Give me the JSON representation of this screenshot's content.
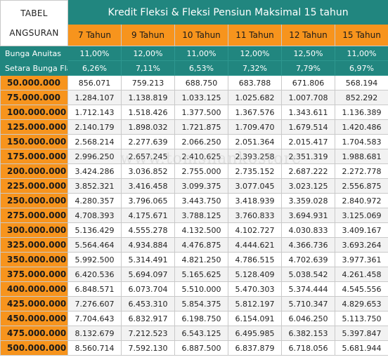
{
  "header": {
    "corner_line1": "TABEL",
    "corner_line2": "ANGSURAN",
    "title": "Kredit Fleksi & Fleksi Pensiun Maksimal 15 tahun",
    "tenors": [
      "7 Tahun",
      "9 Tahun",
      "10 Tahun",
      "11 Tahun",
      "12 Tahun",
      "15 Tahun"
    ]
  },
  "rates": [
    {
      "label": "Bunga Anuitas",
      "values": [
        "11,00%",
        "12,00%",
        "11,00%",
        "12,00%",
        "12,50%",
        "11,00%"
      ]
    },
    {
      "label": "Setara Bunga Flat",
      "values": [
        "6,26%",
        "7,11%",
        "6,53%",
        "7,32%",
        "7,79%",
        "6,97%"
      ]
    }
  ],
  "rows": [
    {
      "amount": "50.000.000",
      "values": [
        "856.071",
        "759.213",
        "688.750",
        "683.788",
        "671.806",
        "568.194"
      ]
    },
    {
      "amount": "75.000.000",
      "values": [
        "1.284.107",
        "1.138.819",
        "1.033.125",
        "1.025.682",
        "1.007.708",
        "852.292"
      ]
    },
    {
      "amount": "100.000.000",
      "values": [
        "1.712.143",
        "1.518.426",
        "1.377.500",
        "1.367.576",
        "1.343.611",
        "1.136.389"
      ]
    },
    {
      "amount": "125.000.000",
      "values": [
        "2.140.179",
        "1.898.032",
        "1.721.875",
        "1.709.470",
        "1.679.514",
        "1.420.486"
      ]
    },
    {
      "amount": "150.000.000",
      "values": [
        "2.568.214",
        "2.277.639",
        "2.066.250",
        "2.051.364",
        "2.015.417",
        "1.704.583"
      ]
    },
    {
      "amount": "175.000.000",
      "values": [
        "2.996.250",
        "2.657.245",
        "2.410.625",
        "2.393.258",
        "2.351.319",
        "1.988.681"
      ]
    },
    {
      "amount": "200.000.000",
      "values": [
        "3.424.286",
        "3.036.852",
        "2.755.000",
        "2.735.152",
        "2.687.222",
        "2.272.778"
      ]
    },
    {
      "amount": "225.000.000",
      "values": [
        "3.852.321",
        "3.416.458",
        "3.099.375",
        "3.077.045",
        "3.023.125",
        "2.556.875"
      ]
    },
    {
      "amount": "250.000.000",
      "values": [
        "4.280.357",
        "3.796.065",
        "3.443.750",
        "3.418.939",
        "3.359.028",
        "2.840.972"
      ]
    },
    {
      "amount": "275.000.000",
      "values": [
        "4.708.393",
        "4.175.671",
        "3.788.125",
        "3.760.833",
        "3.694.931",
        "3.125.069"
      ]
    },
    {
      "amount": "300.000.000",
      "values": [
        "5.136.429",
        "4.555.278",
        "4.132.500",
        "4.102.727",
        "4.030.833",
        "3.409.167"
      ]
    },
    {
      "amount": "325.000.000",
      "values": [
        "5.564.464",
        "4.934.884",
        "4.476.875",
        "4.444.621",
        "4.366.736",
        "3.693.264"
      ]
    },
    {
      "amount": "350.000.000",
      "values": [
        "5.992.500",
        "5.314.491",
        "4.821.250",
        "4.786.515",
        "4.702.639",
        "3.977.361"
      ]
    },
    {
      "amount": "375.000.000",
      "values": [
        "6.420.536",
        "5.694.097",
        "5.165.625",
        "5.128.409",
        "5.038.542",
        "4.261.458"
      ]
    },
    {
      "amount": "400.000.000",
      "values": [
        "6.848.571",
        "6.073.704",
        "5.510.000",
        "5.470.303",
        "5.374.444",
        "4.545.556"
      ]
    },
    {
      "amount": "425.000.000",
      "values": [
        "7.276.607",
        "6.453.310",
        "5.854.375",
        "5.812.197",
        "5.710.347",
        "4.829.653"
      ]
    },
    {
      "amount": "450.000.000",
      "values": [
        "7.704.643",
        "6.832.917",
        "6.198.750",
        "6.154.091",
        "6.046.250",
        "5.113.750"
      ]
    },
    {
      "amount": "475.000.000",
      "values": [
        "8.132.679",
        "7.212.523",
        "6.543.125",
        "6.495.985",
        "6.382.153",
        "5.397.847"
      ]
    },
    {
      "amount": "500.000.000",
      "values": [
        "8.560.714",
        "7.592.130",
        "6.887.500",
        "6.837.879",
        "6.718.056",
        "5.681.944"
      ]
    }
  ],
  "watermark": "www.tomsnankostore"
}
